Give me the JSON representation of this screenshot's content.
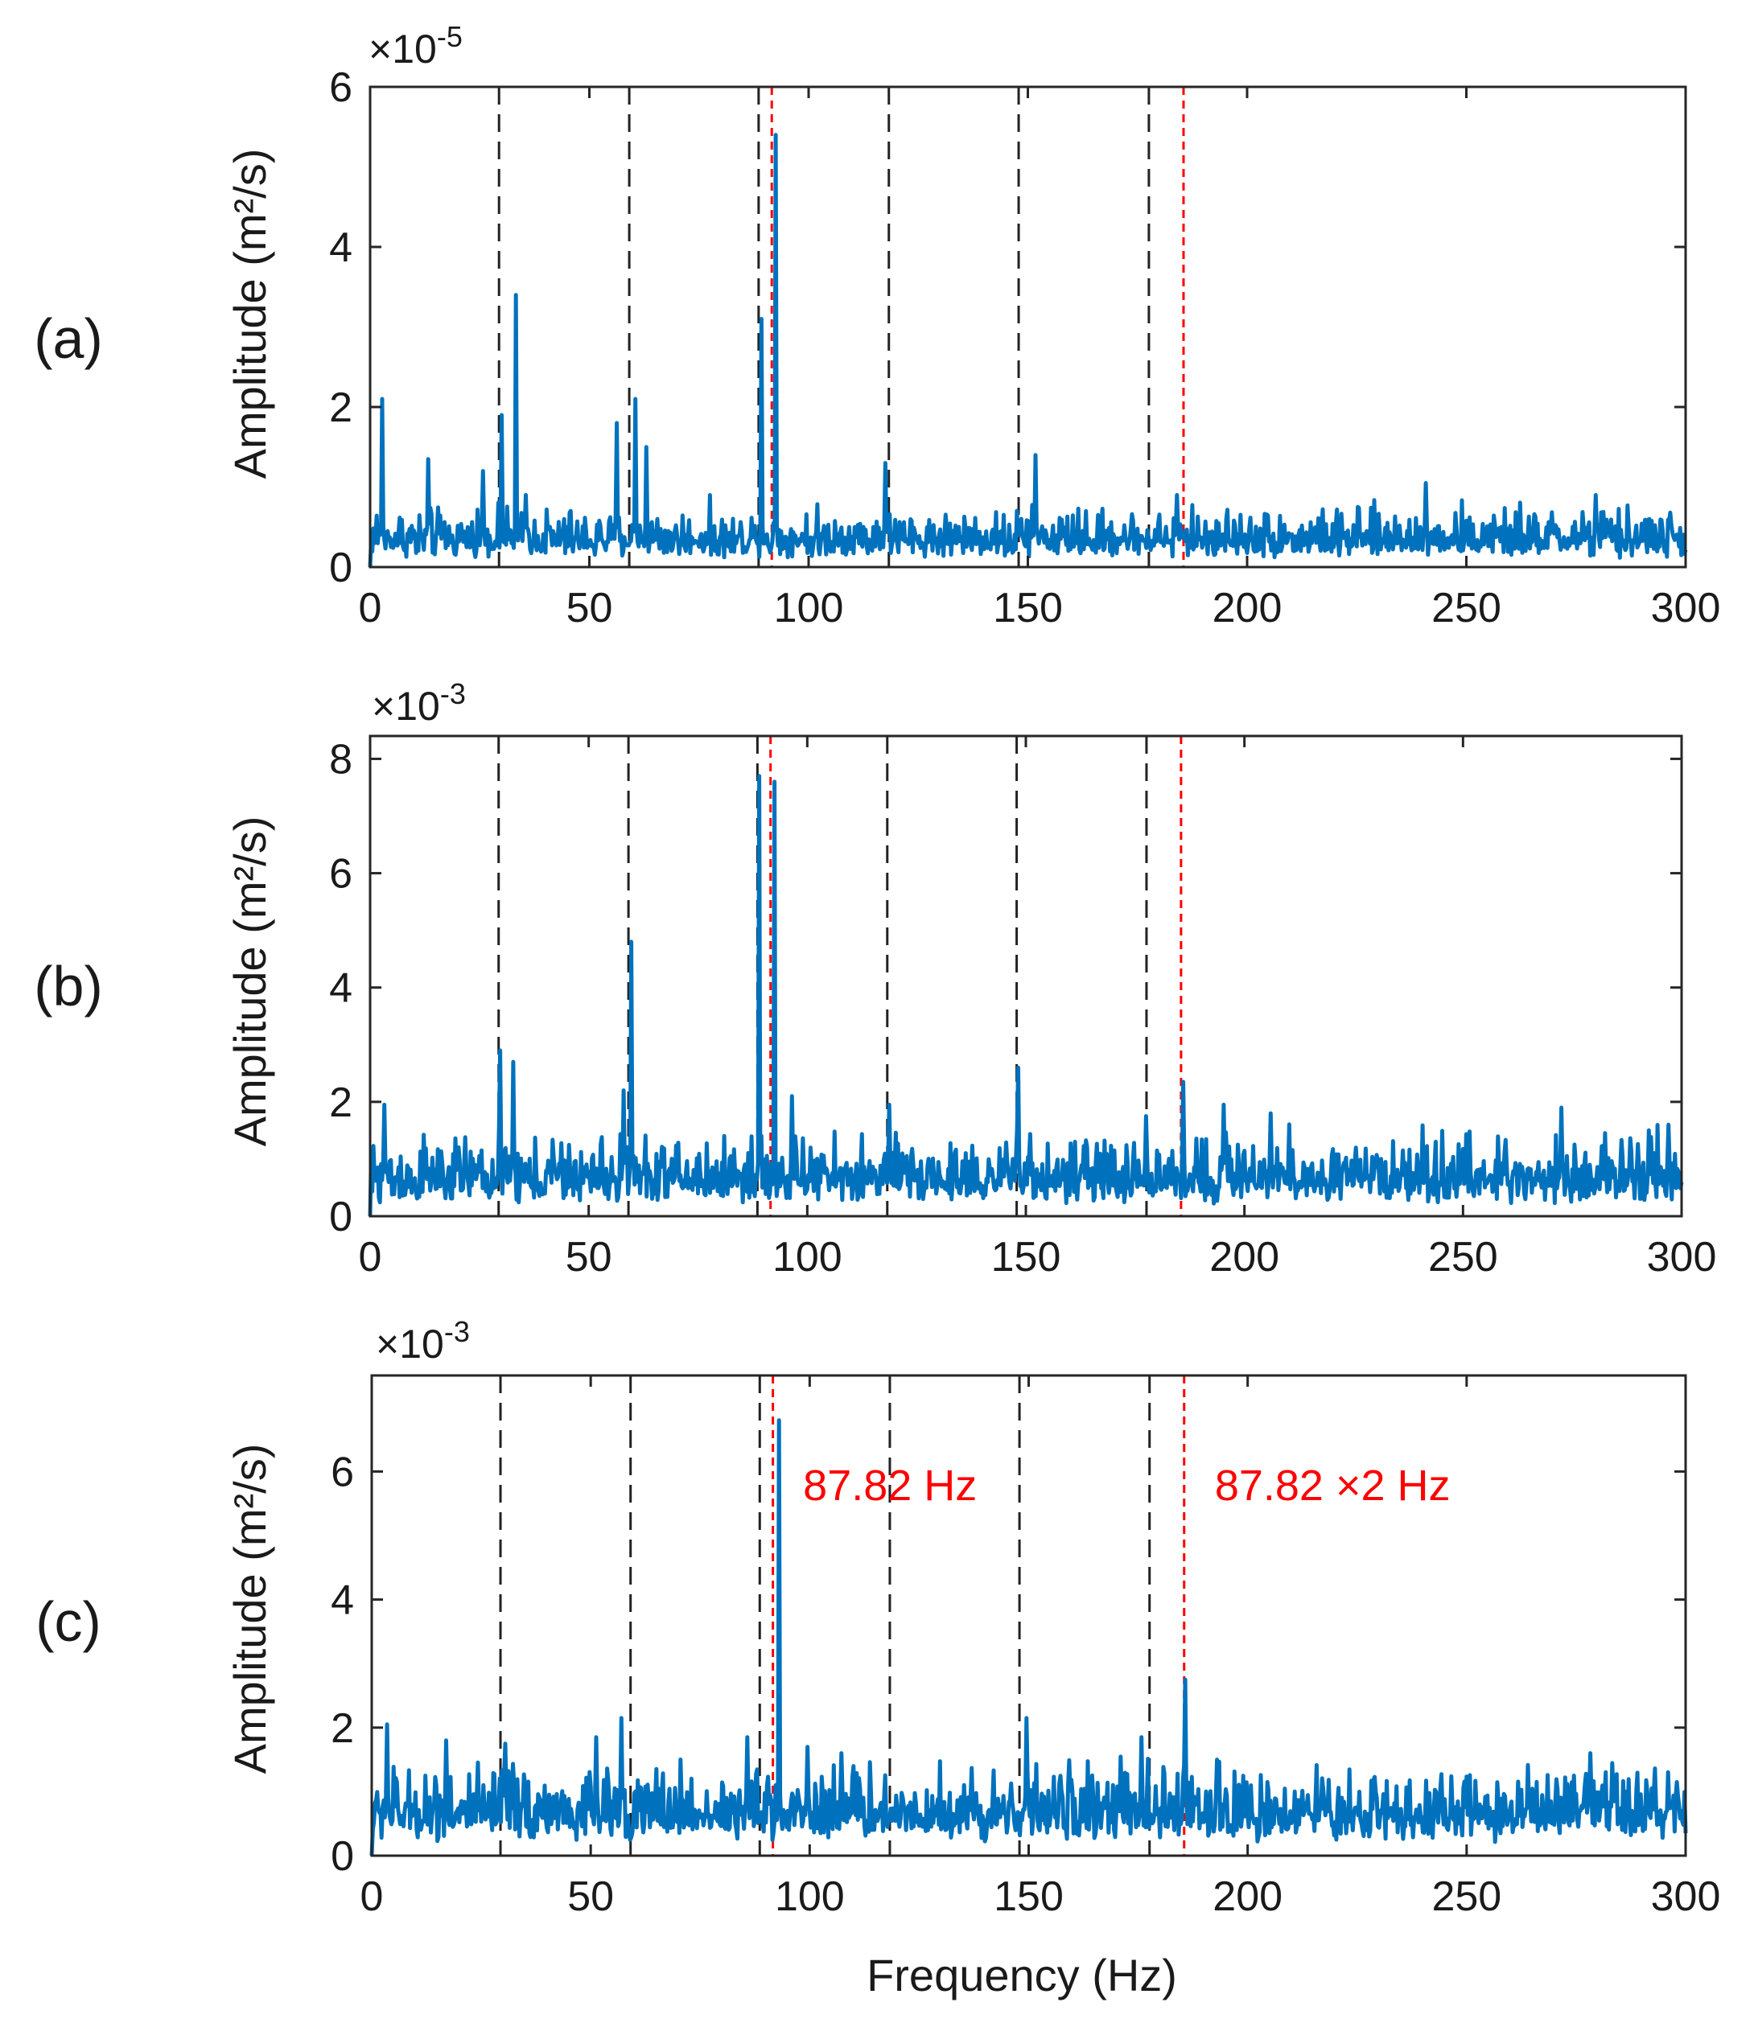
{
  "figure": {
    "x_axis_title": "Frequency (Hz)",
    "black_guides_hz": [
      29.4,
      59.1,
      88.6,
      118.3,
      147.9,
      177.6
    ],
    "red_guides_hz": [
      91.6,
      185.5
    ]
  },
  "chart_data": [
    {
      "type": "line",
      "panel_label": "(a)",
      "ylabel": "Amplitude (m²/s)",
      "exponent": "×10",
      "exponent_power": "-5",
      "xlim": [
        0,
        300
      ],
      "ylim": [
        0,
        6
      ],
      "xticks": [
        "0",
        "50",
        "100",
        "150",
        "200",
        "250",
        "300"
      ],
      "yticks": [
        "0",
        "2",
        "4",
        "6"
      ],
      "series_color": "#0072BD",
      "noise_level": 0.45,
      "peaks": [
        [
          2.8,
          2.1
        ],
        [
          13.3,
          1.35
        ],
        [
          25.7,
          1.2
        ],
        [
          29.9,
          1.9
        ],
        [
          33.2,
          3.4
        ],
        [
          35.5,
          0.9
        ],
        [
          56.3,
          1.8
        ],
        [
          60.4,
          2.1
        ],
        [
          63.1,
          1.5
        ],
        [
          89.2,
          3.1
        ],
        [
          92.6,
          5.4
        ],
        [
          117.6,
          1.3
        ],
        [
          151.8,
          1.4
        ],
        [
          184.1,
          0.9
        ],
        [
          240.7,
          1.05
        ],
        [
          279.5,
          0.9
        ]
      ],
      "annotations": []
    },
    {
      "type": "line",
      "panel_label": "(b)",
      "ylabel": "Amplitude (m²/s)",
      "exponent": "×10",
      "exponent_power": "-3",
      "xlim": [
        0,
        300
      ],
      "ylim": [
        0,
        8.4
      ],
      "xticks": [
        "0",
        "50",
        "100",
        "150",
        "200",
        "250",
        "300"
      ],
      "yticks": [
        "0",
        "2",
        "4",
        "6",
        "8"
      ],
      "series_color": "#0072BD",
      "noise_level": 0.85,
      "peaks": [
        [
          3.2,
          1.95
        ],
        [
          29.8,
          2.9
        ],
        [
          32.7,
          2.7
        ],
        [
          58.1,
          2.2
        ],
        [
          59.8,
          4.8
        ],
        [
          89.1,
          7.7
        ],
        [
          92.5,
          7.6
        ],
        [
          96.4,
          2.1
        ],
        [
          118.7,
          1.95
        ],
        [
          148.3,
          2.6
        ],
        [
          177.4,
          1.75
        ],
        [
          185.9,
          2.35
        ],
        [
          195.2,
          1.95
        ],
        [
          206.0,
          1.8
        ],
        [
          272.4,
          1.9
        ],
        [
          297.1,
          1.6
        ]
      ],
      "annotations": []
    },
    {
      "type": "line",
      "panel_label": "(c)",
      "ylabel": "Amplitude (m²/s)",
      "exponent": "×10",
      "exponent_power": "-3",
      "xlim": [
        0,
        300
      ],
      "ylim": [
        0,
        7.5
      ],
      "xticks": [
        "0",
        "50",
        "100",
        "150",
        "200",
        "250",
        "300"
      ],
      "yticks": [
        "0",
        "2",
        "4",
        "6"
      ],
      "series_color": "#0072BD",
      "noise_level": 0.85,
      "peaks": [
        [
          3.4,
          2.05
        ],
        [
          17.1,
          1.8
        ],
        [
          30.4,
          1.75
        ],
        [
          51.2,
          1.85
        ],
        [
          57.1,
          2.15
        ],
        [
          85.8,
          1.85
        ],
        [
          93.1,
          6.8
        ],
        [
          99.5,
          1.7
        ],
        [
          107.3,
          1.6
        ],
        [
          149.5,
          2.15
        ],
        [
          175.7,
          1.85
        ],
        [
          185.7,
          2.75
        ],
        [
          193.0,
          1.5
        ],
        [
          278.3,
          1.6
        ],
        [
          298.0,
          1.15
        ]
      ],
      "annotations": [
        {
          "text": "87.82 Hz",
          "x_hz": 98.5,
          "y": 5.55
        },
        {
          "text": "87.82 ×2 Hz",
          "x_hz": 192.5,
          "y": 5.55
        }
      ]
    }
  ]
}
